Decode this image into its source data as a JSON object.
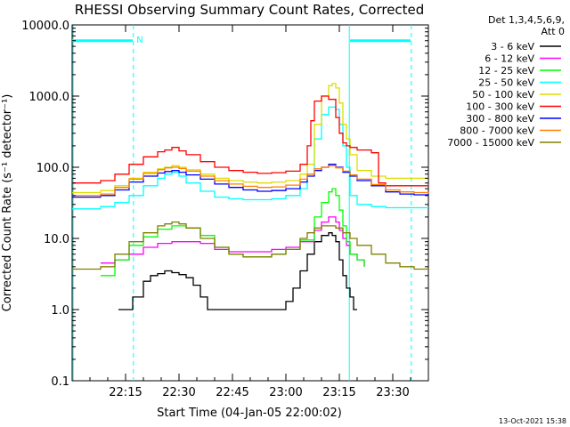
{
  "chart_data": {
    "type": "line",
    "title": "RHESSI Observing Summary Count Rates, Corrected",
    "xlabel": "Start Time (04-Jan-05 22:00:02)",
    "ylabel": "Corrected Count Rate (s⁻¹ detector⁻¹)",
    "ylog": true,
    "ylim": [
      0.1,
      10000
    ],
    "xlim_min": [
      0,
      100
    ],
    "x_ticks": [
      {
        "label": "22:15",
        "min": 15
      },
      {
        "label": "22:30",
        "min": 30
      },
      {
        "label": "22:45",
        "min": 45
      },
      {
        "label": "23:00",
        "min": 60
      },
      {
        "label": "23:15",
        "min": 75
      },
      {
        "label": "23:30",
        "min": 90
      }
    ],
    "y_ticks": [
      {
        "label": "0.1",
        "value": 0.1
      },
      {
        "label": "1.0",
        "value": 1
      },
      {
        "label": "10.0",
        "value": 10
      },
      {
        "label": "100.0",
        "value": 100
      },
      {
        "label": "1000.0",
        "value": 1000
      },
      {
        "label": "10000.0",
        "value": 10000
      }
    ],
    "legend": {
      "position": "right",
      "header": [
        "Det 1,3,4,5,6,9,",
        "Att 0"
      ]
    },
    "annotations": [
      {
        "text": "N",
        "min": 19,
        "value": 6300
      }
    ],
    "night_intervals": [
      {
        "start_min": 0,
        "end_min": 17,
        "level": 6000
      },
      {
        "start_min": 78,
        "end_min": 95,
        "level": 6000
      }
    ],
    "saa_markers_min": [
      17.2,
      95.2
    ],
    "attenuator_markers_min": [
      0.3,
      77.8
    ],
    "series": [
      {
        "name": "3 - 6 keV",
        "color": "#000000",
        "x": [
          13,
          15,
          17,
          20,
          22,
          24,
          26,
          28,
          30,
          32,
          34,
          36,
          38,
          53,
          56,
          58,
          60,
          62,
          64,
          66,
          68,
          70,
          72,
          73,
          74,
          75,
          76,
          77,
          78,
          79,
          80
        ],
        "y": [
          1,
          1,
          1.5,
          2.5,
          3,
          3.2,
          3.5,
          3.3,
          3.1,
          2.8,
          2.2,
          1.5,
          1,
          1,
          1,
          1,
          1.3,
          2,
          3.5,
          6,
          9,
          11,
          12,
          11,
          9,
          5,
          3,
          2,
          1.5,
          1,
          1
        ]
      },
      {
        "name": "6 - 12 keV",
        "color": "#ff00ff",
        "x": [
          8,
          12,
          16,
          20,
          24,
          28,
          32,
          36,
          40,
          44,
          48,
          52,
          56,
          60,
          64,
          68,
          70,
          72,
          74,
          75,
          76,
          77,
          78,
          80,
          82
        ],
        "y": [
          4.5,
          5,
          6,
          7.5,
          8.5,
          9,
          9,
          8.5,
          7,
          6.5,
          6.5,
          6.5,
          7,
          7.5,
          9,
          13,
          17,
          20,
          17,
          13,
          10,
          8,
          6,
          5,
          4
        ]
      },
      {
        "name": "12 - 25 keV",
        "color": "#00ff00",
        "x": [
          8,
          12,
          16,
          20,
          24,
          28,
          32,
          36,
          40,
          44,
          48,
          52,
          56,
          60,
          64,
          68,
          70,
          72,
          73,
          74,
          75,
          76,
          77,
          78,
          80,
          82
        ],
        "y": [
          3,
          5,
          8,
          10.5,
          13.5,
          15,
          14,
          11,
          7.5,
          6,
          5.5,
          5.5,
          6,
          7,
          9.5,
          20,
          32,
          45,
          50,
          40,
          25,
          15,
          9,
          6,
          5,
          4
        ]
      },
      {
        "name": "25 - 50 keV",
        "color": "#00ffff",
        "x": [
          0,
          8,
          12,
          16,
          20,
          24,
          26,
          28,
          30,
          32,
          36,
          40,
          44,
          48,
          52,
          56,
          60,
          64,
          66,
          68,
          70,
          72,
          74,
          75,
          76,
          77,
          78,
          80,
          84,
          88,
          92,
          96,
          100
        ],
        "y": [
          26,
          28,
          32,
          40,
          55,
          70,
          80,
          85,
          75,
          60,
          46,
          38,
          36,
          35,
          35,
          36,
          40,
          50,
          80,
          250,
          550,
          700,
          650,
          400,
          200,
          100,
          40,
          30,
          28,
          27,
          27,
          27,
          27
        ]
      },
      {
        "name": "50 - 100 keV",
        "color": "#dddd00",
        "x": [
          0,
          8,
          12,
          16,
          20,
          24,
          26,
          28,
          30,
          32,
          36,
          40,
          44,
          48,
          52,
          56,
          60,
          64,
          66,
          68,
          70,
          72,
          73,
          74,
          75,
          76,
          77,
          78,
          80,
          84,
          88,
          92,
          96,
          100
        ],
        "y": [
          44,
          47,
          55,
          70,
          85,
          95,
          100,
          105,
          100,
          92,
          80,
          70,
          65,
          62,
          60,
          62,
          65,
          80,
          110,
          400,
          1000,
          1400,
          1500,
          1300,
          800,
          400,
          250,
          150,
          90,
          75,
          70,
          70,
          70,
          70
        ]
      },
      {
        "name": "100 - 300 keV",
        "color": "#ff0000",
        "x": [
          0,
          8,
          12,
          16,
          20,
          24,
          26,
          28,
          30,
          32,
          36,
          40,
          44,
          48,
          52,
          56,
          60,
          64,
          66,
          67,
          68,
          70,
          72,
          74,
          75,
          76,
          77,
          78,
          80,
          84,
          86,
          88,
          92,
          96,
          100
        ],
        "y": [
          60,
          65,
          80,
          110,
          140,
          165,
          175,
          190,
          170,
          150,
          120,
          100,
          90,
          85,
          82,
          84,
          88,
          110,
          200,
          450,
          850,
          1000,
          900,
          500,
          300,
          220,
          200,
          190,
          175,
          160,
          60,
          55,
          55,
          55,
          55
        ]
      },
      {
        "name": "300 - 800 keV",
        "color": "#0000ff",
        "x": [
          0,
          8,
          12,
          16,
          20,
          24,
          26,
          28,
          30,
          32,
          36,
          40,
          44,
          48,
          52,
          56,
          60,
          64,
          66,
          68,
          70,
          72,
          74,
          76,
          78,
          80,
          84,
          88,
          92,
          96,
          100
        ],
        "y": [
          38,
          40,
          48,
          62,
          75,
          83,
          87,
          90,
          85,
          78,
          68,
          58,
          52,
          48,
          46,
          47,
          50,
          62,
          75,
          90,
          100,
          110,
          100,
          85,
          75,
          65,
          55,
          45,
          42,
          41,
          40
        ]
      },
      {
        "name": "800 - 7000 keV",
        "color": "#ff8000",
        "x": [
          0,
          8,
          12,
          16,
          20,
          24,
          26,
          28,
          30,
          32,
          36,
          40,
          44,
          48,
          52,
          56,
          60,
          64,
          66,
          68,
          70,
          72,
          74,
          76,
          78,
          80,
          84,
          88,
          92,
          96,
          100
        ],
        "y": [
          40,
          42,
          52,
          68,
          82,
          92,
          98,
          100,
          96,
          88,
          75,
          65,
          58,
          54,
          52,
          53,
          56,
          68,
          80,
          95,
          100,
          105,
          98,
          88,
          78,
          68,
          57,
          48,
          45,
          44,
          43
        ]
      },
      {
        "name": "7000 - 15000 keV",
        "color": "#808000",
        "x": [
          0,
          8,
          12,
          16,
          20,
          24,
          26,
          28,
          30,
          32,
          36,
          40,
          44,
          48,
          52,
          56,
          60,
          64,
          66,
          68,
          70,
          72,
          74,
          76,
          78,
          80,
          84,
          88,
          92,
          96,
          100
        ],
        "y": [
          3.7,
          4,
          6,
          9,
          12,
          15,
          16,
          17,
          16,
          14,
          10,
          7.5,
          6,
          5.5,
          5.5,
          6,
          7,
          10,
          12,
          14,
          15,
          15,
          14,
          12,
          10,
          8,
          6,
          4.5,
          4,
          3.7,
          3.7
        ]
      }
    ]
  },
  "footer": {
    "timestamp": "13-Oct-2021 15:38"
  }
}
